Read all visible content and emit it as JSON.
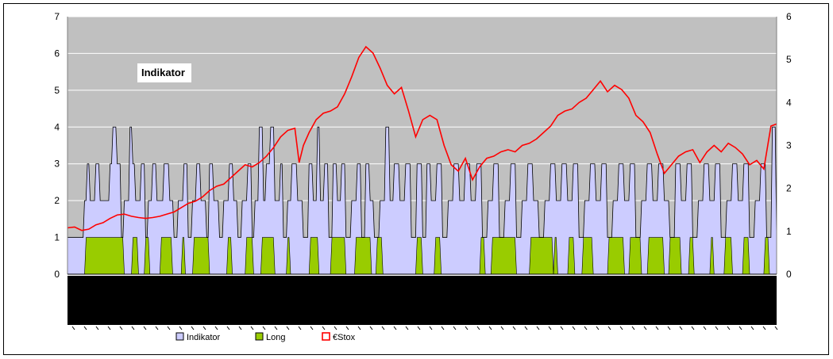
{
  "chart_data": {
    "type": "area",
    "annotation": "Indikator",
    "x_count": 500,
    "y_left": {
      "min": 0,
      "max": 7,
      "ticks": [
        "0",
        "1",
        "2",
        "3",
        "4",
        "5",
        "6",
        "7"
      ]
    },
    "y_right": {
      "min": 0,
      "max": 6,
      "ticks": [
        "0",
        "1",
        "2",
        "3",
        "4",
        "5",
        "6"
      ]
    },
    "grid": true,
    "legend_position": "bottom",
    "colors": {
      "plot_bg": "#c0c0c0",
      "indikator_fill": "#ccccff",
      "indikator_line": "#000000",
      "long_fill": "#99cc00",
      "stox_line": "#ff0000"
    },
    "series": [
      {
        "name": "Indikator",
        "axis": "left",
        "steps": [
          [
            0,
            1
          ],
          [
            12,
            2
          ],
          [
            14,
            3
          ],
          [
            16,
            2
          ],
          [
            20,
            3
          ],
          [
            23,
            2
          ],
          [
            30,
            3
          ],
          [
            32,
            4
          ],
          [
            35,
            3
          ],
          [
            38,
            1
          ],
          [
            40,
            2
          ],
          [
            44,
            4
          ],
          [
            46,
            3
          ],
          [
            48,
            2
          ],
          [
            52,
            3
          ],
          [
            55,
            1
          ],
          [
            57,
            2
          ],
          [
            60,
            3
          ],
          [
            63,
            2
          ],
          [
            68,
            3
          ],
          [
            72,
            2
          ],
          [
            75,
            1
          ],
          [
            78,
            2
          ],
          [
            82,
            3
          ],
          [
            85,
            1
          ],
          [
            88,
            2
          ],
          [
            91,
            3
          ],
          [
            94,
            2
          ],
          [
            98,
            1
          ],
          [
            100,
            3
          ],
          [
            103,
            2
          ],
          [
            107,
            1
          ],
          [
            110,
            2
          ],
          [
            114,
            3
          ],
          [
            117,
            2
          ],
          [
            120,
            1
          ],
          [
            123,
            2
          ],
          [
            127,
            3
          ],
          [
            130,
            1
          ],
          [
            132,
            2
          ],
          [
            135,
            4
          ],
          [
            138,
            2
          ],
          [
            140,
            3
          ],
          [
            143,
            4
          ],
          [
            146,
            2
          ],
          [
            150,
            3
          ],
          [
            152,
            1
          ],
          [
            155,
            2
          ],
          [
            158,
            3
          ],
          [
            162,
            2
          ],
          [
            166,
            1
          ],
          [
            170,
            3
          ],
          [
            173,
            2
          ],
          [
            176,
            4
          ],
          [
            178,
            2
          ],
          [
            181,
            3
          ],
          [
            184,
            1
          ],
          [
            187,
            3
          ],
          [
            190,
            2
          ],
          [
            193,
            3
          ],
          [
            196,
            1
          ],
          [
            200,
            2
          ],
          [
            204,
            3
          ],
          [
            207,
            1
          ],
          [
            210,
            3
          ],
          [
            213,
            2
          ],
          [
            216,
            1
          ],
          [
            220,
            2
          ],
          [
            224,
            4
          ],
          [
            227,
            2
          ],
          [
            230,
            3
          ],
          [
            234,
            2
          ],
          [
            238,
            3
          ],
          [
            242,
            1
          ],
          [
            246,
            3
          ],
          [
            250,
            1
          ],
          [
            253,
            3
          ],
          [
            256,
            2
          ],
          [
            260,
            3
          ],
          [
            264,
            1
          ],
          [
            268,
            2
          ],
          [
            272,
            3
          ],
          [
            276,
            2
          ],
          [
            280,
            3
          ],
          [
            284,
            2
          ],
          [
            288,
            3
          ],
          [
            292,
            1
          ],
          [
            296,
            2
          ],
          [
            300,
            3
          ],
          [
            304,
            1
          ],
          [
            308,
            2
          ],
          [
            312,
            3
          ],
          [
            316,
            1
          ],
          [
            320,
            2
          ],
          [
            324,
            3
          ],
          [
            328,
            2
          ],
          [
            332,
            1
          ],
          [
            336,
            2
          ],
          [
            340,
            3
          ],
          [
            344,
            2
          ],
          [
            348,
            3
          ],
          [
            352,
            2
          ],
          [
            356,
            3
          ],
          [
            360,
            1
          ],
          [
            364,
            2
          ],
          [
            368,
            3
          ],
          [
            372,
            2
          ],
          [
            376,
            3
          ],
          [
            380,
            1
          ],
          [
            384,
            2
          ],
          [
            388,
            3
          ],
          [
            392,
            2
          ],
          [
            396,
            3
          ],
          [
            400,
            1
          ],
          [
            404,
            2
          ],
          [
            408,
            3
          ],
          [
            412,
            2
          ],
          [
            416,
            3
          ],
          [
            420,
            2
          ],
          [
            424,
            1
          ],
          [
            428,
            3
          ],
          [
            432,
            2
          ],
          [
            436,
            3
          ],
          [
            440,
            1
          ],
          [
            444,
            2
          ],
          [
            448,
            3
          ],
          [
            452,
            2
          ],
          [
            456,
            3
          ],
          [
            460,
            1
          ],
          [
            464,
            2
          ],
          [
            468,
            3
          ],
          [
            472,
            2
          ],
          [
            476,
            3
          ],
          [
            480,
            1
          ],
          [
            484,
            2
          ],
          [
            488,
            3
          ],
          [
            492,
            1
          ],
          [
            496,
            4
          ],
          [
            499,
            1
          ]
        ]
      },
      {
        "name": "Long",
        "axis": "left",
        "segments": [
          [
            12,
            40
          ],
          [
            45,
            50
          ],
          [
            54,
            58
          ],
          [
            65,
            74
          ],
          [
            80,
            83
          ],
          [
            88,
            100
          ],
          [
            112,
            116
          ],
          [
            125,
            131
          ],
          [
            136,
            146
          ],
          [
            154,
            157
          ],
          [
            170,
            177
          ],
          [
            185,
            196
          ],
          [
            202,
            214
          ],
          [
            217,
            222
          ],
          [
            245,
            250
          ],
          [
            258,
            263
          ],
          [
            290,
            294
          ],
          [
            298,
            316
          ],
          [
            325,
            342
          ],
          [
            342,
            345
          ],
          [
            352,
            357
          ],
          [
            362,
            370
          ],
          [
            380,
            392
          ],
          [
            395,
            404
          ],
          [
            408,
            420
          ],
          [
            423,
            432
          ],
          [
            437,
            441
          ],
          [
            452,
            455
          ],
          [
            462,
            468
          ],
          [
            475,
            480
          ],
          [
            490,
            494
          ]
        ]
      },
      {
        "name": "€Stox",
        "axis": "right",
        "points": [
          [
            0,
            1.08
          ],
          [
            5,
            1.1
          ],
          [
            10,
            1.02
          ],
          [
            15,
            1.05
          ],
          [
            20,
            1.15
          ],
          [
            25,
            1.2
          ],
          [
            30,
            1.3
          ],
          [
            35,
            1.38
          ],
          [
            40,
            1.4
          ],
          [
            45,
            1.35
          ],
          [
            50,
            1.32
          ],
          [
            55,
            1.3
          ],
          [
            60,
            1.32
          ],
          [
            65,
            1.35
          ],
          [
            70,
            1.4
          ],
          [
            75,
            1.45
          ],
          [
            80,
            1.55
          ],
          [
            85,
            1.65
          ],
          [
            90,
            1.7
          ],
          [
            95,
            1.8
          ],
          [
            100,
            1.95
          ],
          [
            105,
            2.05
          ],
          [
            110,
            2.1
          ],
          [
            115,
            2.25
          ],
          [
            120,
            2.4
          ],
          [
            125,
            2.55
          ],
          [
            130,
            2.5
          ],
          [
            135,
            2.6
          ],
          [
            140,
            2.75
          ],
          [
            145,
            2.95
          ],
          [
            150,
            3.2
          ],
          [
            155,
            3.35
          ],
          [
            160,
            3.4
          ],
          [
            163,
            2.6
          ],
          [
            166,
            3.0
          ],
          [
            170,
            3.3
          ],
          [
            175,
            3.6
          ],
          [
            180,
            3.75
          ],
          [
            185,
            3.8
          ],
          [
            190,
            3.9
          ],
          [
            195,
            4.2
          ],
          [
            200,
            4.6
          ],
          [
            205,
            5.05
          ],
          [
            210,
            5.3
          ],
          [
            215,
            5.15
          ],
          [
            220,
            4.8
          ],
          [
            225,
            4.4
          ],
          [
            230,
            4.2
          ],
          [
            235,
            4.35
          ],
          [
            240,
            3.8
          ],
          [
            245,
            3.2
          ],
          [
            250,
            3.6
          ],
          [
            255,
            3.7
          ],
          [
            260,
            3.6
          ],
          [
            265,
            3.0
          ],
          [
            270,
            2.55
          ],
          [
            275,
            2.4
          ],
          [
            280,
            2.7
          ],
          [
            285,
            2.2
          ],
          [
            290,
            2.5
          ],
          [
            295,
            2.7
          ],
          [
            300,
            2.75
          ],
          [
            305,
            2.85
          ],
          [
            310,
            2.9
          ],
          [
            315,
            2.85
          ],
          [
            320,
            3.0
          ],
          [
            325,
            3.05
          ],
          [
            330,
            3.15
          ],
          [
            335,
            3.3
          ],
          [
            340,
            3.45
          ],
          [
            345,
            3.7
          ],
          [
            350,
            3.8
          ],
          [
            355,
            3.85
          ],
          [
            360,
            4.0
          ],
          [
            365,
            4.1
          ],
          [
            370,
            4.3
          ],
          [
            375,
            4.5
          ],
          [
            380,
            4.25
          ],
          [
            385,
            4.4
          ],
          [
            390,
            4.3
          ],
          [
            395,
            4.1
          ],
          [
            400,
            3.7
          ],
          [
            405,
            3.55
          ],
          [
            410,
            3.3
          ],
          [
            415,
            2.8
          ],
          [
            420,
            2.35
          ],
          [
            425,
            2.55
          ],
          [
            430,
            2.75
          ],
          [
            435,
            2.85
          ],
          [
            440,
            2.9
          ],
          [
            445,
            2.6
          ],
          [
            450,
            2.85
          ],
          [
            455,
            3.0
          ],
          [
            460,
            2.85
          ],
          [
            465,
            3.05
          ],
          [
            470,
            2.95
          ],
          [
            475,
            2.8
          ],
          [
            480,
            2.55
          ],
          [
            485,
            2.65
          ],
          [
            490,
            2.45
          ],
          [
            495,
            3.45
          ],
          [
            499,
            3.5
          ]
        ]
      }
    ],
    "legend": [
      "Indikator",
      "Long",
      "€Stox"
    ]
  }
}
